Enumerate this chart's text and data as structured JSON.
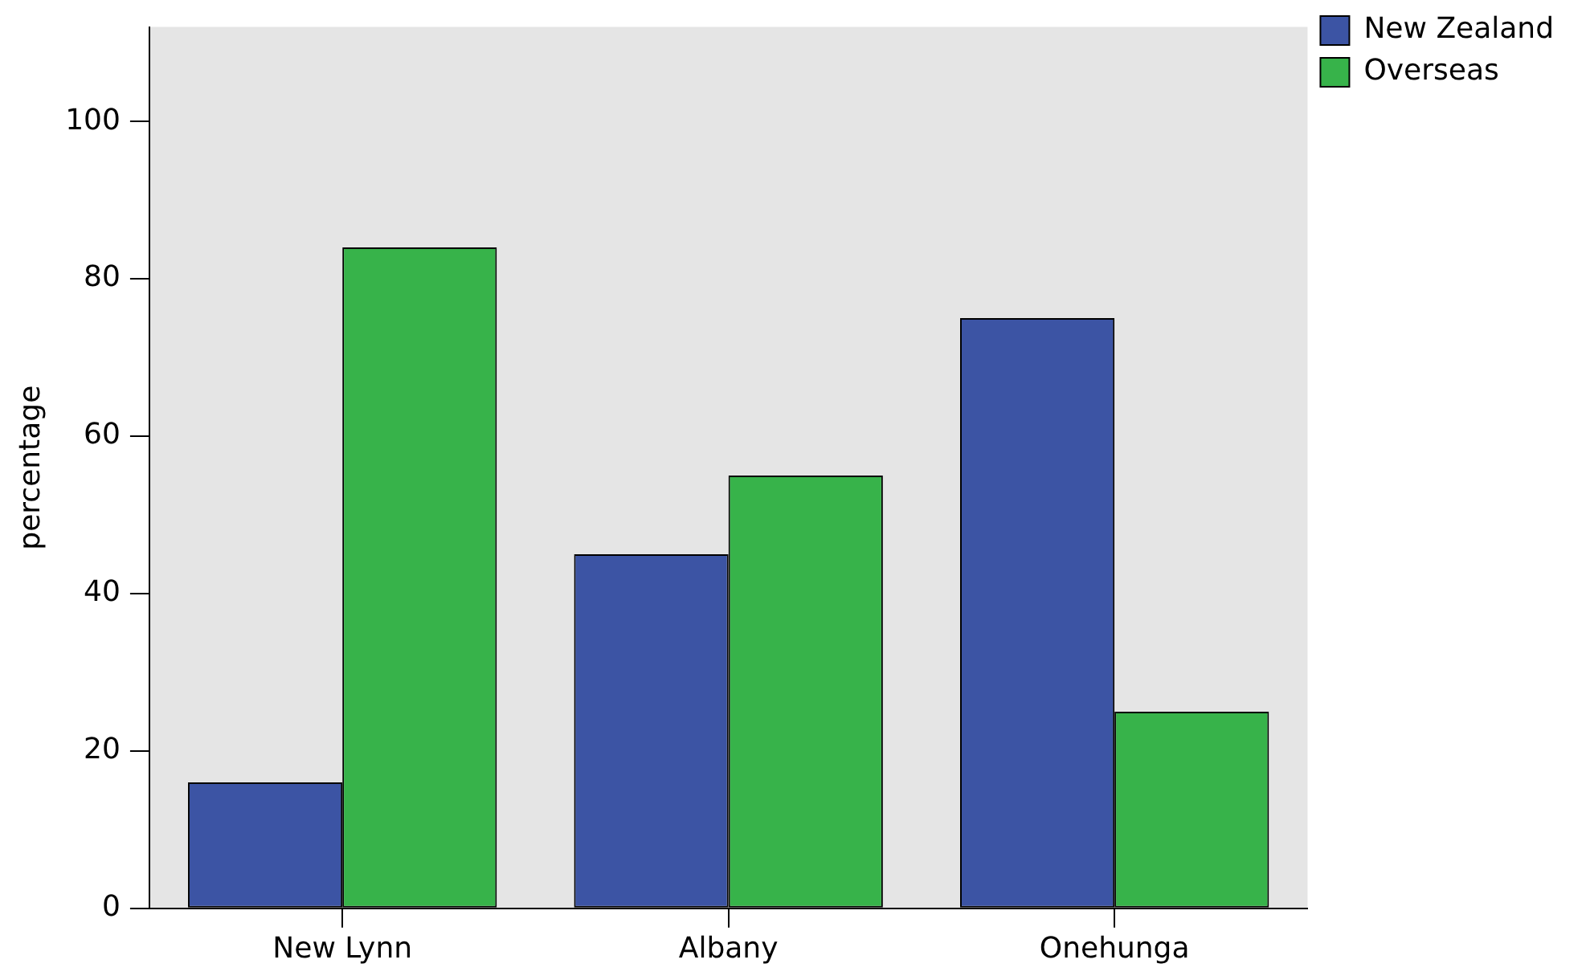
{
  "chart_data": {
    "type": "bar",
    "ylabel": "percentage",
    "categories": [
      "New Lynn",
      "Albany",
      "Onehunga"
    ],
    "series": [
      {
        "name": "New Zealand",
        "color": "#3c54a4",
        "values": [
          16,
          45,
          75
        ]
      },
      {
        "name": "Overseas",
        "color": "#37b34a",
        "values": [
          84,
          55,
          25
        ]
      }
    ],
    "ylim": [
      0,
      112
    ],
    "yticks": [
      0,
      20,
      40,
      60,
      80,
      100
    ],
    "grid": false,
    "legend": "top right"
  }
}
